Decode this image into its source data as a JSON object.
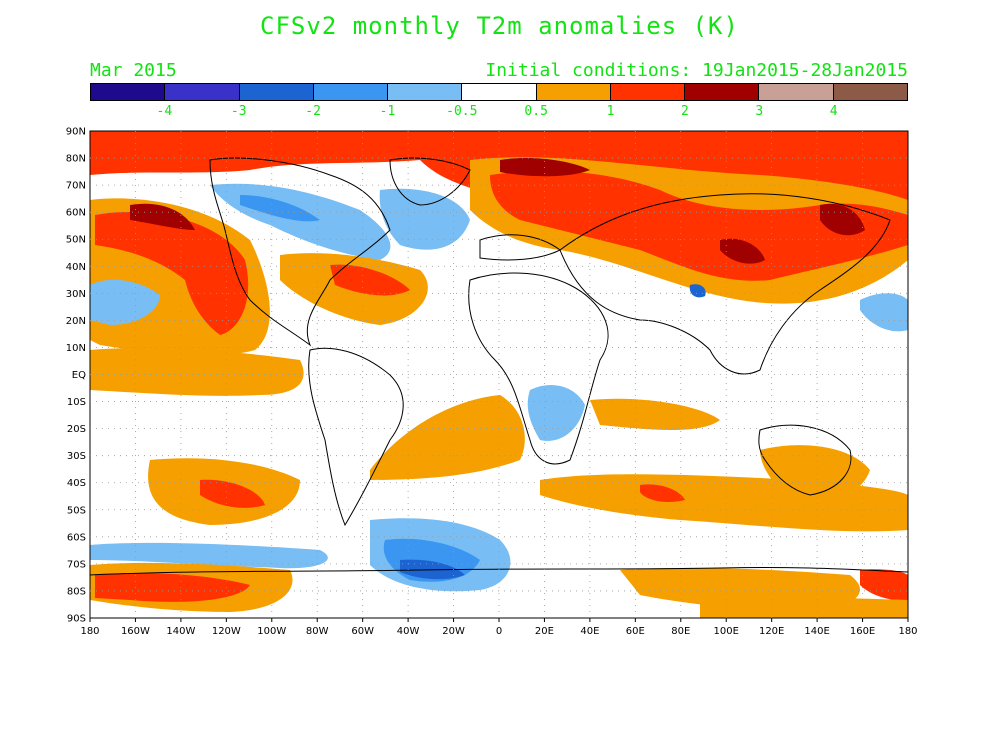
{
  "title": "CFSv2 monthly T2m anomalies (K)",
  "subtitle_left": "Mar 2015",
  "subtitle_right": "Initial conditions: 19Jan2015-28Jan2015",
  "colorbar": {
    "colors": [
      "#1e0a8c",
      "#3a32c8",
      "#1c64d2",
      "#3a96f0",
      "#78bef5",
      "#ffffff",
      "#f5a000",
      "#ff3200",
      "#a00000",
      "#c8a096",
      "#8c5a46"
    ],
    "labels": [
      "-4",
      "-3",
      "-2",
      "-1",
      "-0.5",
      "0.5",
      "1",
      "2",
      "3",
      "4"
    ]
  },
  "map": {
    "lat_labels": [
      "90N",
      "80N",
      "70N",
      "60N",
      "50N",
      "40N",
      "30N",
      "20N",
      "10N",
      "EQ",
      "10S",
      "20S",
      "30S",
      "40S",
      "50S",
      "60S",
      "70S",
      "80S",
      "90S"
    ],
    "lon_labels": [
      "180",
      "160W",
      "140W",
      "120W",
      "100W",
      "80W",
      "60W",
      "40W",
      "20W",
      "0",
      "20E",
      "40E",
      "60E",
      "80E",
      "100E",
      "120E",
      "140E",
      "160E",
      "180"
    ]
  }
}
